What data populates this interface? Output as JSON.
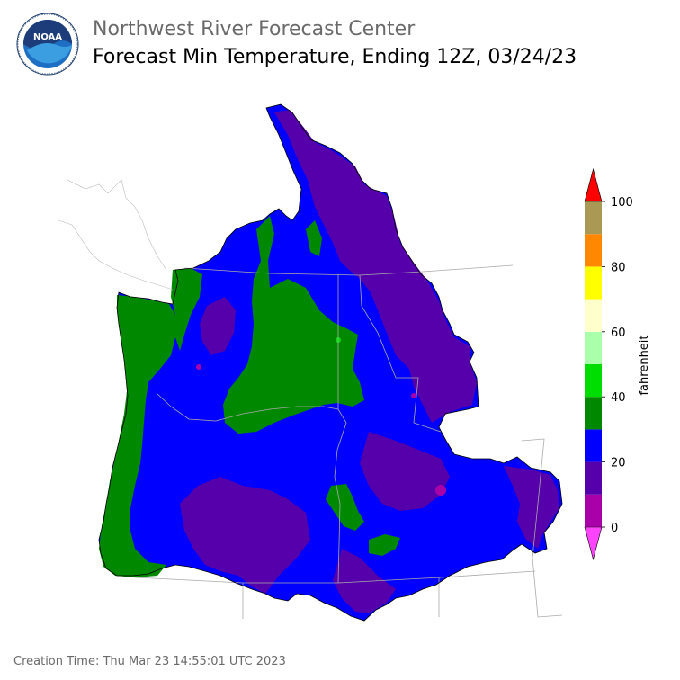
{
  "header": {
    "organization": "Northwest River Forecast Center",
    "title": "Forecast Min Temperature, Ending 12Z, 03/24/23"
  },
  "logo": {
    "icon": "noaa-logo-icon",
    "text": "NOAA",
    "ring_text": "NATIONAL OCEANIC AND ATMOSPHERIC ADMINISTRATION · U.S. DEPARTMENT OF COMMERCE"
  },
  "colorbar": {
    "unit": "fahrenheit",
    "ticks": [
      "0",
      "20",
      "40",
      "60",
      "80",
      "100"
    ],
    "bins": [
      {
        "from": 0,
        "to": 10,
        "color": "#aa00aa"
      },
      {
        "from": 10,
        "to": 20,
        "color": "#5500aa"
      },
      {
        "from": 20,
        "to": 30,
        "color": "#0000ff"
      },
      {
        "from": 30,
        "to": 40,
        "color": "#008800"
      },
      {
        "from": 40,
        "to": 50,
        "color": "#00dd00"
      },
      {
        "from": 50,
        "to": 60,
        "color": "#aaffaa"
      },
      {
        "from": 60,
        "to": 70,
        "color": "#ffffcc"
      },
      {
        "from": 70,
        "to": 80,
        "color": "#ffff00"
      },
      {
        "from": 80,
        "to": 90,
        "color": "#ff8800"
      },
      {
        "from": 90,
        "to": 100,
        "color": "#aa9955"
      }
    ],
    "under_color": "#ff44ff",
    "over_color": "#ff0000"
  },
  "footer": {
    "creation_time": "Creation Time: Thu Mar 23 14:55:01 UTC 2023"
  }
}
